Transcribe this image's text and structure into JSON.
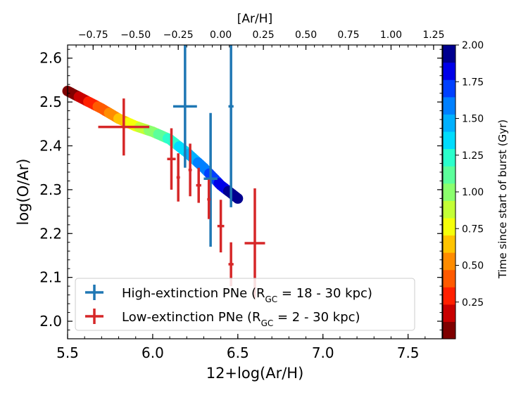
{
  "chart_data": {
    "type": "scatter",
    "xlabel": "12+log(Ar/H)",
    "ylabel": "log(O/Ar)",
    "top_xlabel": "[Ar/H]",
    "xlim": [
      5.5,
      7.7
    ],
    "ylim": [
      1.96,
      2.63
    ],
    "x_ticks": [
      "5.5",
      "6.0",
      "6.5",
      "7.0",
      "7.5"
    ],
    "x_tick_values": [
      5.5,
      6.0,
      6.5,
      7.0,
      7.5
    ],
    "y_ticks": [
      "2.0",
      "2.1",
      "2.2",
      "2.3",
      "2.4",
      "2.5",
      "2.6"
    ],
    "y_tick_values": [
      2.0,
      2.1,
      2.2,
      2.3,
      2.4,
      2.5,
      2.6
    ],
    "top_ticks": [
      "−0.75",
      "−0.50",
      "−0.25",
      "0.00",
      "0.25",
      "0.50",
      "0.75",
      "1.00",
      "1.25"
    ],
    "top_tick_values": [
      -0.75,
      -0.5,
      -0.25,
      0.0,
      0.25,
      0.5,
      0.75,
      1.0,
      1.25
    ],
    "top_axis_offset": 6.4,
    "colorbar": {
      "label": "Time since start of burst  (Gyr)",
      "range": [
        0.0,
        2.0
      ],
      "ticks": [
        "0.25",
        "0.50",
        "0.75",
        "1.00",
        "1.25",
        "1.50",
        "1.75",
        "2.00"
      ],
      "tick_values": [
        0.25,
        0.5,
        0.75,
        1.0,
        1.25,
        1.5,
        1.75,
        2.0
      ],
      "colors": [
        "#7f0000",
        "#c80000",
        "#ff2000",
        "#ff5a00",
        "#ff8c00",
        "#ffc400",
        "#f5ff0a",
        "#c3ff36",
        "#8bff6d",
        "#5cff9b",
        "#2bffcc",
        "#00dcfe",
        "#00b0ff",
        "#0080ff",
        "#0040ff",
        "#0000e8",
        "#00008f"
      ]
    },
    "model_track": {
      "name": "",
      "x": [
        5.5,
        5.6,
        5.7,
        5.8,
        5.9,
        6.0,
        6.1,
        6.2,
        6.3,
        6.4,
        6.5
      ],
      "y": [
        2.525,
        2.505,
        2.485,
        2.462,
        2.445,
        2.432,
        2.415,
        2.385,
        2.35,
        2.31,
        2.28
      ],
      "t": [
        0.0,
        0.2,
        0.4,
        0.6,
        0.8,
        1.0,
        1.2,
        1.4,
        1.6,
        1.8,
        2.0
      ]
    },
    "series": [
      {
        "name": "High-extinction PNe (R_GC = 18 - 30 kpc)",
        "color": "#1f77b4",
        "points": [
          {
            "x": 6.19,
            "y": 2.49,
            "xerr": 0.07,
            "yerr_low": 0.14,
            "yerr_high": 0.14
          },
          {
            "x": 6.34,
            "y": 2.325,
            "xerr": 0.04,
            "yerr_low": 0.155,
            "yerr_high": 0.15
          },
          {
            "x": 6.46,
            "y": 2.49,
            "xerr": 0.015,
            "yerr_low": 0.23,
            "yerr_high": 0.14
          }
        ]
      },
      {
        "name": "Low-extinction PNe (R_GC = 2 - 30 kpc)",
        "color": "#d62728",
        "points": [
          {
            "x": 5.83,
            "y": 2.443,
            "xerr": 0.15,
            "yerr_low": 0.065,
            "yerr_high": 0.065
          },
          {
            "x": 6.11,
            "y": 2.37,
            "xerr": 0.025,
            "yerr_low": 0.07,
            "yerr_high": 0.07
          },
          {
            "x": 6.15,
            "y": 2.328,
            "xerr": 0.01,
            "yerr_low": 0.055,
            "yerr_high": 0.055
          },
          {
            "x": 6.22,
            "y": 2.345,
            "xerr": 0.01,
            "yerr_low": 0.06,
            "yerr_high": 0.06
          },
          {
            "x": 6.27,
            "y": 2.31,
            "xerr": 0.015,
            "yerr_low": 0.04,
            "yerr_high": 0.04
          },
          {
            "x": 6.33,
            "y": 2.278,
            "xerr": 0.01,
            "yerr_low": 0.045,
            "yerr_high": 0.045
          },
          {
            "x": 6.4,
            "y": 2.217,
            "xerr": 0.02,
            "yerr_low": 0.06,
            "yerr_high": 0.06
          },
          {
            "x": 6.46,
            "y": 2.13,
            "xerr": 0.015,
            "yerr_low": 0.05,
            "yerr_high": 0.05
          },
          {
            "x": 6.6,
            "y": 2.178,
            "xerr": 0.06,
            "yerr_low": 0.125,
            "yerr_high": 0.125
          }
        ]
      }
    ],
    "legend": {
      "placement": "lower-left",
      "entries": [
        {
          "pre": "High-extinction PNe (R",
          "sub": "GC",
          "post": " = 18 - 30 kpc)"
        },
        {
          "pre": "Low-extinction PNe (R",
          "sub": "GC",
          "post": " = 2 - 30 kpc)"
        }
      ]
    }
  }
}
